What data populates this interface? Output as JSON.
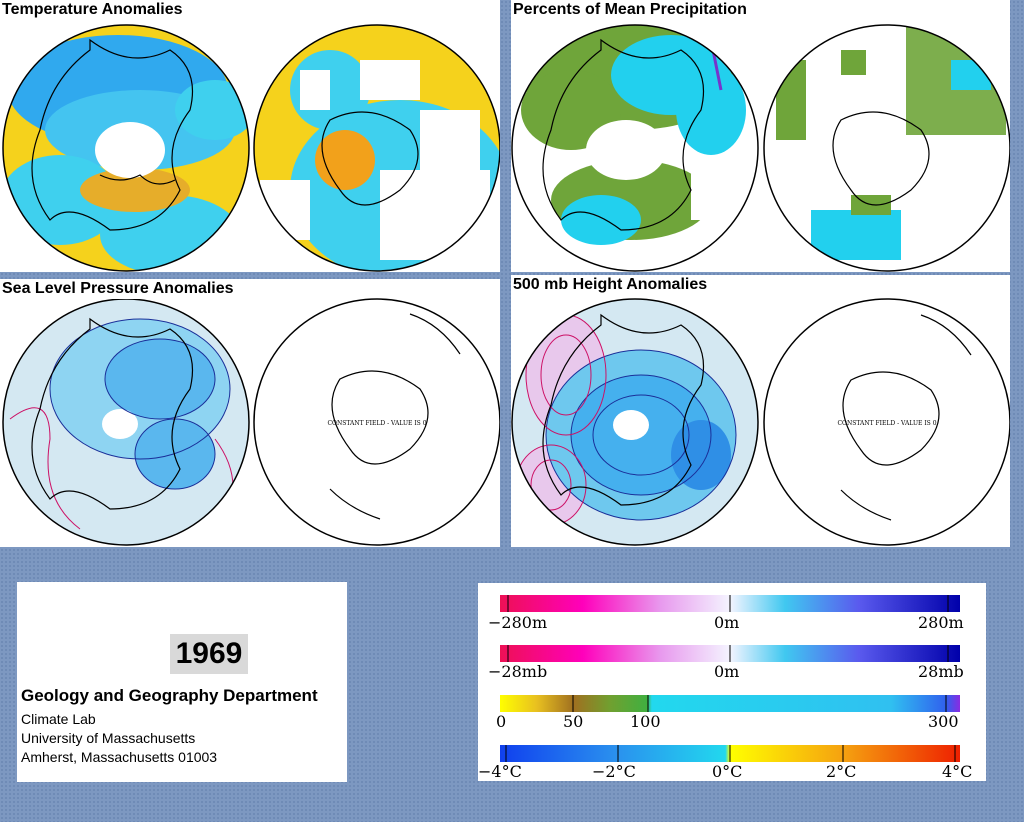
{
  "panels": {
    "temperature": {
      "title": "Temperature Anomalies"
    },
    "precipitation": {
      "title": "Percents of Mean Precipitation"
    },
    "slp": {
      "title": "Sea Level Pressure Anomalies",
      "constant_note": "CONSTANT FIELD - VALUE IS 0"
    },
    "height500": {
      "title": "500 mb Height Anomalies",
      "constant_note": "CONSTANT FIELD - VALUE IS 0"
    }
  },
  "info": {
    "year": "1969",
    "department": "Geology and Geography Department",
    "lab": "Climate Lab",
    "university": "University of Massachusetts",
    "address": "Amherst, Massachusetts 01003"
  },
  "legends": {
    "height": {
      "min": "−280m",
      "mid": "0m",
      "max": "280m"
    },
    "pressure": {
      "min": "−28mb",
      "mid": "0m",
      "max": "28mb"
    },
    "precip": {
      "t0": "0",
      "t1": "50",
      "t2": "100",
      "t3": "300"
    },
    "temp": {
      "t0": "−4°C",
      "t1": "−2°C",
      "t2": "0°C",
      "t3": "2°C",
      "t4": "4°C"
    }
  },
  "colors": {
    "background": "#7d98c1",
    "anomaly_warm": "#f5d21c",
    "anomaly_cool": "#22d0ee",
    "precip_green": "#6fa53a",
    "contour_positive": "#cc1166",
    "contour_negative": "#1a2f99"
  }
}
